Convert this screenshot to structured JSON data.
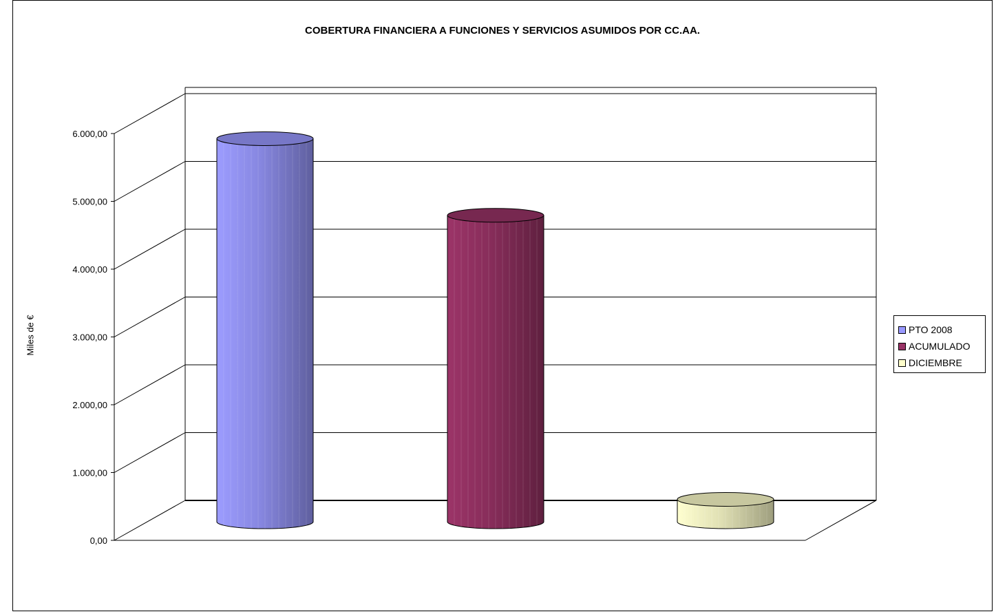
{
  "chart_data": {
    "type": "bar",
    "style": "3d-cylinder",
    "title": "COBERTURA FINANCIERA A FUNCIONES Y SERVICIOS ASUMIDOS POR CC.AA.",
    "xlabel": "",
    "ylabel": "Miles de €",
    "ylim": [
      0,
      6000
    ],
    "yticks": [
      "0,00",
      "1.000,00",
      "2.000,00",
      "3.000,00",
      "4.000,00",
      "5.000,00",
      "6.000,00"
    ],
    "grid": true,
    "legend_position": "right",
    "series": [
      {
        "name": "PTO 2008",
        "value": 5650,
        "color": "#9999ff"
      },
      {
        "name": "ACUMULADO",
        "value": 4520,
        "color": "#993366"
      },
      {
        "name": "DICIEMBRE",
        "value": 330,
        "color": "#ffffcc"
      }
    ]
  }
}
